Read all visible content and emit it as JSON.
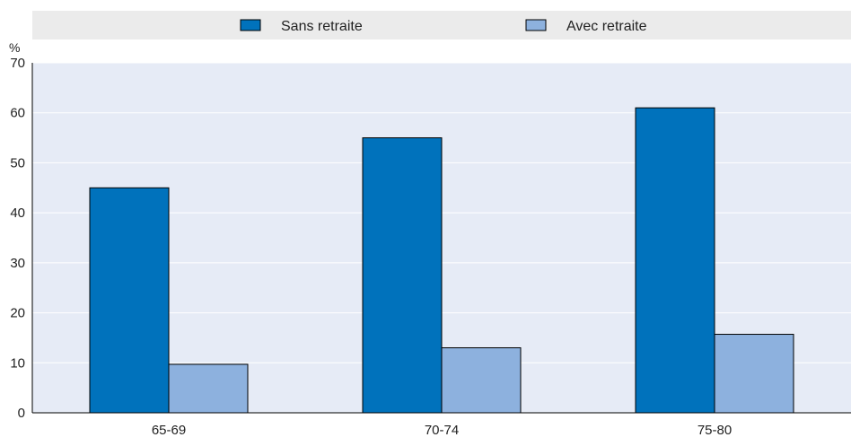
{
  "chart_data": {
    "type": "bar",
    "categories": [
      "65-69",
      "70-74",
      "75-80"
    ],
    "series": [
      {
        "name": "Sans retraite",
        "values": [
          45,
          55,
          61
        ],
        "color": "#0072bc"
      },
      {
        "name": "Avec retraite",
        "values": [
          9.7,
          13,
          15.7
        ],
        "color": "#8db1de"
      }
    ],
    "ylabel": "%",
    "ylim": [
      0,
      70
    ],
    "yticks": [
      "0",
      "10",
      "20",
      "30",
      "40",
      "50",
      "60",
      "70"
    ],
    "grid": true,
    "legend_position": "top"
  },
  "colors": {
    "plot_background": "#e6ebf6",
    "legend_background": "#ebebeb",
    "gridline": "#ffffff"
  }
}
